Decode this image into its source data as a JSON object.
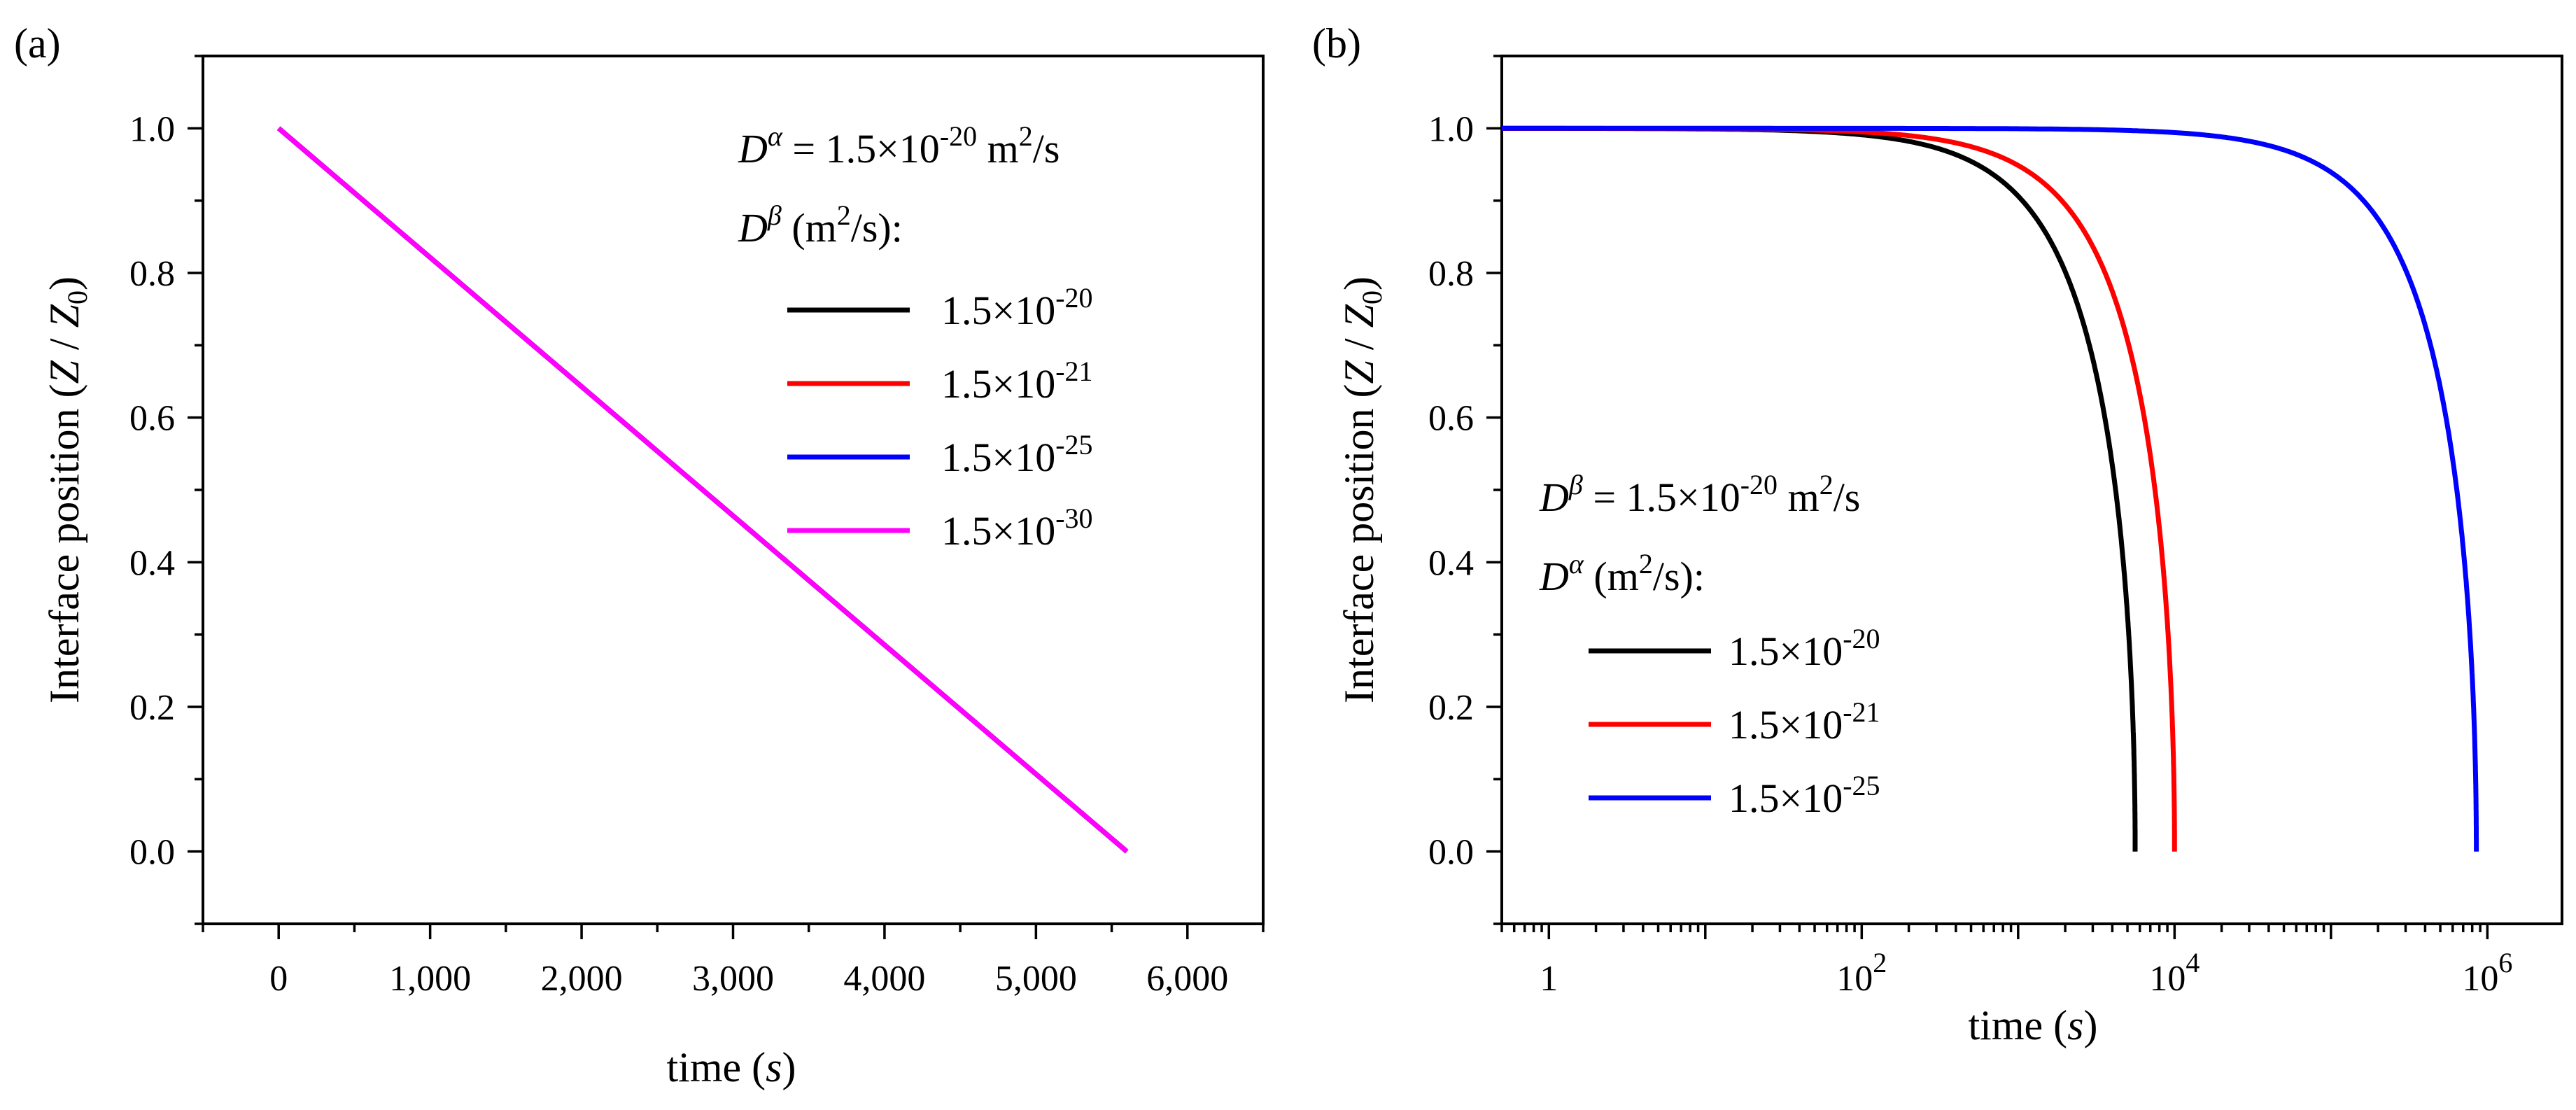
{
  "chart_data": [
    {
      "type": "line",
      "panel_label": "(a)",
      "xscale": "linear",
      "xlim": [
        -500,
        6500
      ],
      "ylim": [
        -0.1,
        1.1
      ],
      "xticks": [
        0,
        1000,
        2000,
        3000,
        4000,
        5000,
        6000
      ],
      "xtick_labels": [
        "0",
        "1,000",
        "2,000",
        "3,000",
        "4,000",
        "5,000",
        "6,000"
      ],
      "yticks": [
        0.0,
        0.2,
        0.4,
        0.6,
        0.8,
        1.0
      ],
      "ytick_labels": [
        "0.0",
        "0.2",
        "0.4",
        "0.6",
        "0.8",
        "1.0"
      ],
      "xlabel": {
        "pre": "time (",
        "var": "s",
        "post": ")"
      },
      "ylabel": {
        "text": "Interface position (",
        "var": "Z",
        "sep": " / ",
        "var2": "Z",
        "sub": "0",
        "post": ")"
      },
      "legend": {
        "position": "top-right",
        "header1": {
          "sym": "D",
          "sup": "α",
          "eq": " = 1.5×10",
          "exp": "-20",
          "unit": " m",
          "unit_sup": "2",
          "unit_post": "/s"
        },
        "header2": {
          "sym": "D",
          "sup": "β",
          "unit": " (m",
          "unit_sup": "2",
          "unit_post": "/s):"
        }
      },
      "series": [
        {
          "name": "1.5×10-20",
          "base": "1.5×10",
          "exp": "-20",
          "color": "#000000",
          "x": [
            0,
            5600
          ],
          "y": [
            1.0,
            0.0
          ]
        },
        {
          "name": "1.5×10-21",
          "base": "1.5×10",
          "exp": "-21",
          "color": "#ff0000",
          "x": [
            0,
            5600
          ],
          "y": [
            1.0,
            0.0
          ]
        },
        {
          "name": "1.5×10-25",
          "base": "1.5×10",
          "exp": "-25",
          "color": "#0000ff",
          "x": [
            0,
            5600
          ],
          "y": [
            1.0,
            0.0
          ]
        },
        {
          "name": "1.5×10-30",
          "base": "1.5×10",
          "exp": "-30",
          "color": "#ff00ff",
          "x": [
            0,
            5600
          ],
          "y": [
            1.0,
            0.0
          ]
        }
      ]
    },
    {
      "type": "line",
      "panel_label": "(b)",
      "xscale": "log",
      "xlim": [
        0.5,
        3000000
      ],
      "ylim": [
        -0.1,
        1.1
      ],
      "xticks_major": [
        1,
        100,
        10000,
        1000000
      ],
      "xtick_labels": [
        {
          "base": "1",
          "exp": ""
        },
        {
          "base": "10",
          "exp": "2"
        },
        {
          "base": "10",
          "exp": "4"
        },
        {
          "base": "10",
          "exp": "6"
        }
      ],
      "yticks": [
        0.0,
        0.2,
        0.4,
        0.6,
        0.8,
        1.0
      ],
      "ytick_labels": [
        "0.0",
        "0.2",
        "0.4",
        "0.6",
        "0.8",
        "1.0"
      ],
      "xlabel": {
        "pre": "time (",
        "var": "s",
        "post": ")"
      },
      "ylabel": {
        "text": "Interface position (",
        "var": "Z",
        "sep": " / ",
        "var2": "Z",
        "sub": "0",
        "post": ")"
      },
      "legend": {
        "position": "bottom-left",
        "header1": {
          "sym": "D",
          "sup": "β",
          "eq": " = 1.5×10",
          "exp": "-20",
          "unit": " m",
          "unit_sup": "2",
          "unit_post": "/s"
        },
        "header2": {
          "sym": "D",
          "sup": "α",
          "unit": " (m",
          "unit_sup": "2",
          "unit_post": "/s):"
        }
      },
      "series": [
        {
          "name": "1.5×10-20",
          "base": "1.5×10",
          "exp": "-20",
          "color": "#000000",
          "t_end": 5600,
          "model": "y = sqrt(1 - t / t_end)"
        },
        {
          "name": "1.5×10-21",
          "base": "1.5×10",
          "exp": "-21",
          "color": "#ff0000",
          "t_end": 10000,
          "model": "y = sqrt(1 - t / t_end)"
        },
        {
          "name": "1.5×10-25",
          "base": "1.5×10",
          "exp": "-25",
          "color": "#0000ff",
          "t_end": 850000,
          "model": "y = sqrt(1 - t / t_end)"
        }
      ]
    }
  ]
}
